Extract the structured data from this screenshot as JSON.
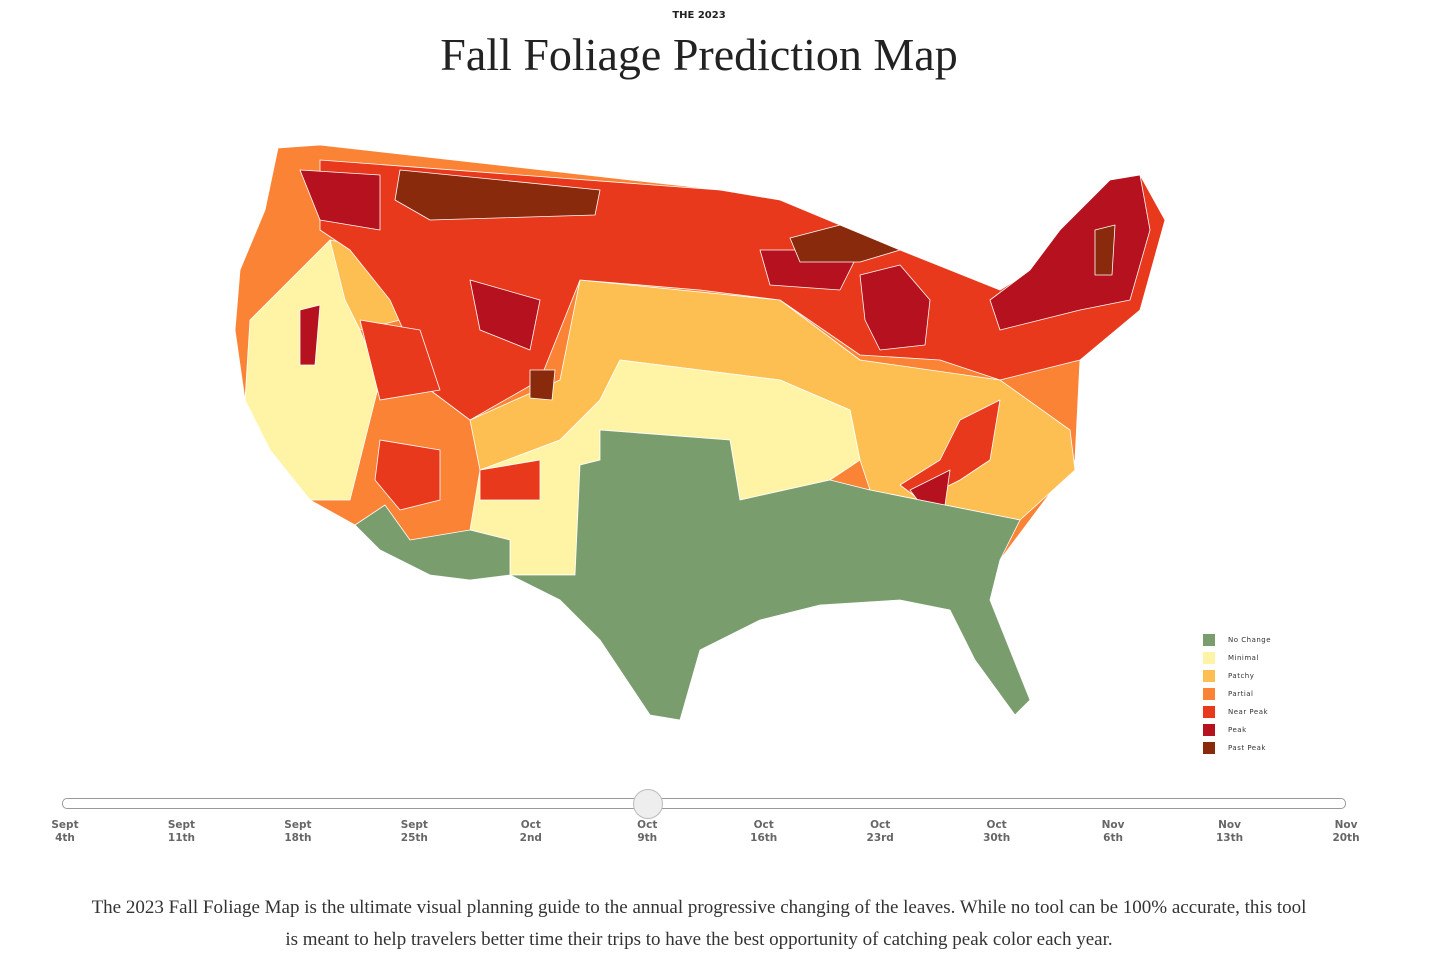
{
  "header": {
    "kicker": "THE 2023",
    "title": "Fall Foliage Prediction Map"
  },
  "legend": [
    {
      "label": "No Change",
      "color": "#7a9d6e"
    },
    {
      "label": "Minimal",
      "color": "#fff4a6"
    },
    {
      "label": "Patchy",
      "color": "#fdbf52"
    },
    {
      "label": "Partial",
      "color": "#fb8336"
    },
    {
      "label": "Near Peak",
      "color": "#e8391d"
    },
    {
      "label": "Peak",
      "color": "#b5111e"
    },
    {
      "label": "Past Peak",
      "color": "#8a2a0c"
    }
  ],
  "slider": {
    "labels": [
      [
        "Sept",
        "4th"
      ],
      [
        "Sept",
        "11th"
      ],
      [
        "Sept",
        "18th"
      ],
      [
        "Sept",
        "25th"
      ],
      [
        "Oct",
        "2nd"
      ],
      [
        "Oct",
        "9th"
      ],
      [
        "Oct",
        "16th"
      ],
      [
        "Oct",
        "23rd"
      ],
      [
        "Oct",
        "30th"
      ],
      [
        "Nov",
        "6th"
      ],
      [
        "Nov",
        "13th"
      ],
      [
        "Nov",
        "20th"
      ]
    ]
  },
  "description": "The 2023 Fall Foliage Map is the ultimate visual planning guide to the annual progressive changing of the leaves. While no tool can be 100% accurate, this tool is meant to help travelers better time their trips to have the best opportunity of catching peak color each year."
}
